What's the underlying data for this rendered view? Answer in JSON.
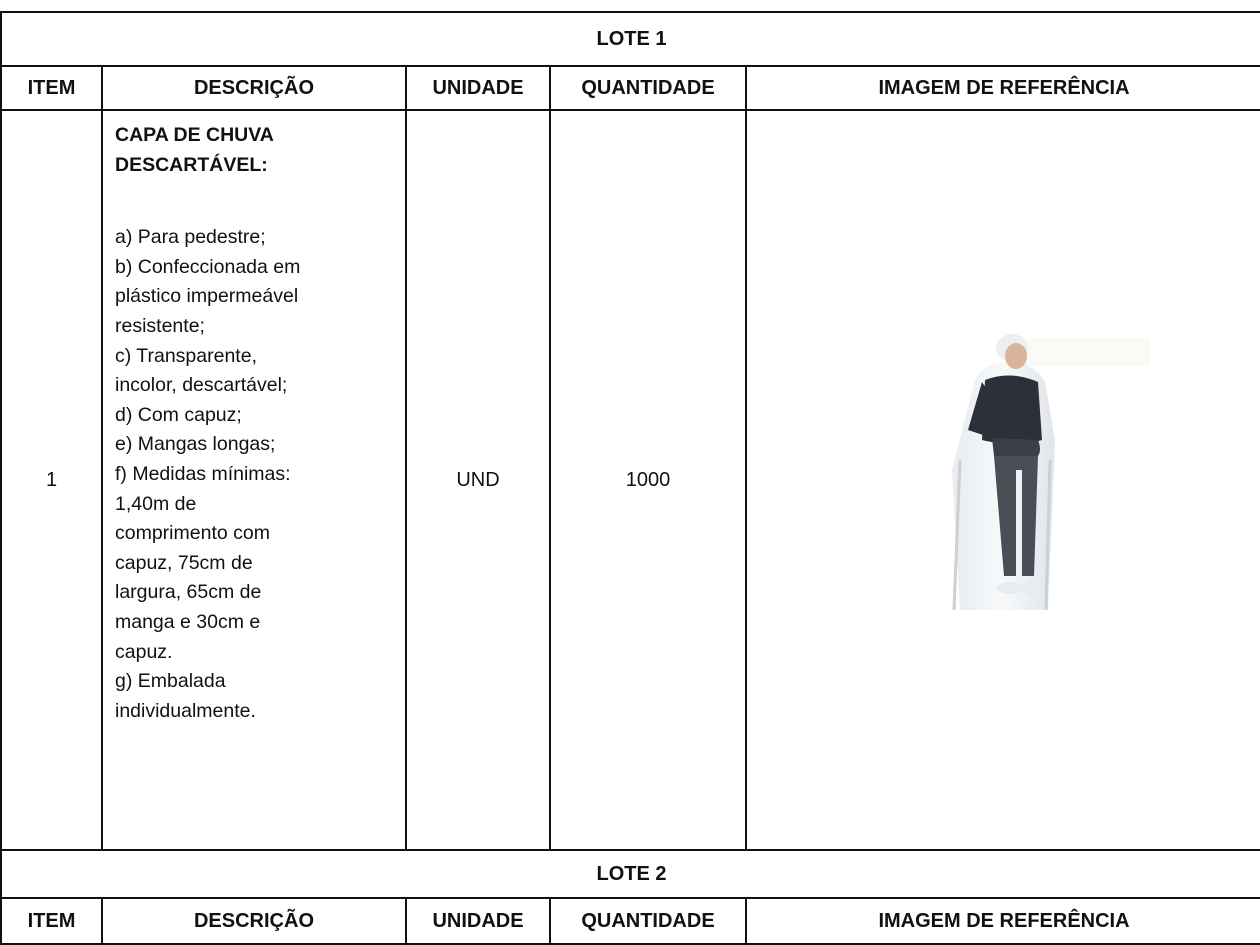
{
  "sections": [
    {
      "title": "LOTE 1",
      "headers": [
        "ITEM",
        "DESCRIÇÃO",
        "UNIDADE",
        "QUANTIDADE",
        "IMAGEM DE REFERÊNCIA"
      ],
      "rows": [
        {
          "item": "1",
          "description": {
            "title": [
              "CAPA DE CHUVA",
              "DESCARTÁVEL:"
            ],
            "lines": [
              "a) Para pedestre;",
              "b) Confeccionada em",
              "plástico impermeável",
              "resistente;",
              "c) Transparente,",
              "incolor, descartável;",
              "d) Com capuz;",
              "e) Mangas longas;",
              "f) Medidas mínimas:",
              "1,40m de",
              "comprimento com",
              "capuz, 75cm de",
              "largura, 65cm de",
              "manga e 30cm e",
              "capuz.",
              "g) Embalada",
              "individualmente."
            ]
          },
          "unit": "UND",
          "quantity": "1000"
        }
      ]
    },
    {
      "title": "LOTE 2",
      "headers": [
        "ITEM",
        "DESCRIÇÃO",
        "UNIDADE",
        "QUANTIDADE",
        "IMAGEM DE REFERÊNCIA"
      ]
    }
  ]
}
